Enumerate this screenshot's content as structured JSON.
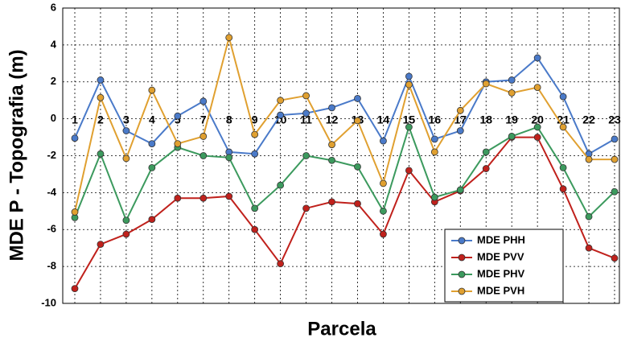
{
  "chart_data": {
    "type": "line",
    "ylabel": "MDE P - Topografia (m)",
    "xlabel": "Parcela",
    "categories": [
      "1",
      "2",
      "3",
      "4",
      "5",
      "7",
      "8",
      "9",
      "10",
      "11",
      "12",
      "13",
      "14",
      "15",
      "16",
      "17",
      "18",
      "19",
      "20",
      "21",
      "22",
      "23"
    ],
    "ylim": [
      -10,
      6
    ],
    "yticks": [
      -10,
      -8,
      -6,
      -4,
      -2,
      0,
      2,
      4,
      6
    ],
    "grid": true,
    "legend": "lower right",
    "series": [
      {
        "name": "MDE PHH",
        "color": "#4a7ac9",
        "values": [
          -1.05,
          2.1,
          -0.65,
          -1.35,
          0.15,
          0.95,
          -1.8,
          -1.9,
          0.2,
          0.3,
          0.6,
          1.1,
          -1.2,
          2.3,
          -1.1,
          -0.65,
          2.0,
          2.1,
          3.3,
          1.2,
          -1.9,
          -1.1
        ]
      },
      {
        "name": "MDE PVV",
        "color": "#c0211c",
        "values": [
          -9.2,
          -6.8,
          -6.25,
          -5.45,
          -4.3,
          -4.3,
          -4.2,
          -6.0,
          -7.85,
          -4.85,
          -4.5,
          -4.6,
          -6.25,
          -2.8,
          -4.5,
          -3.9,
          -2.7,
          -1.0,
          -1.0,
          -3.8,
          -7.0,
          -7.55
        ]
      },
      {
        "name": "MDE PHV",
        "color": "#3c9a5e",
        "values": [
          -5.35,
          -1.9,
          -5.5,
          -2.65,
          -1.55,
          -2.0,
          -2.1,
          -4.85,
          -3.6,
          -2.0,
          -2.25,
          -2.6,
          -5.0,
          -0.45,
          -4.25,
          -3.85,
          -1.8,
          -0.95,
          -0.45,
          -2.65,
          -5.3,
          -3.95
        ]
      },
      {
        "name": "MDE PVH",
        "color": "#e0a030",
        "values": [
          -5.05,
          1.15,
          -2.15,
          1.55,
          -1.35,
          -0.95,
          4.4,
          -0.85,
          1.0,
          1.25,
          -1.4,
          -0.1,
          -3.5,
          1.85,
          -1.8,
          0.45,
          1.9,
          1.4,
          1.7,
          -0.45,
          -2.2,
          -2.2
        ]
      }
    ]
  }
}
